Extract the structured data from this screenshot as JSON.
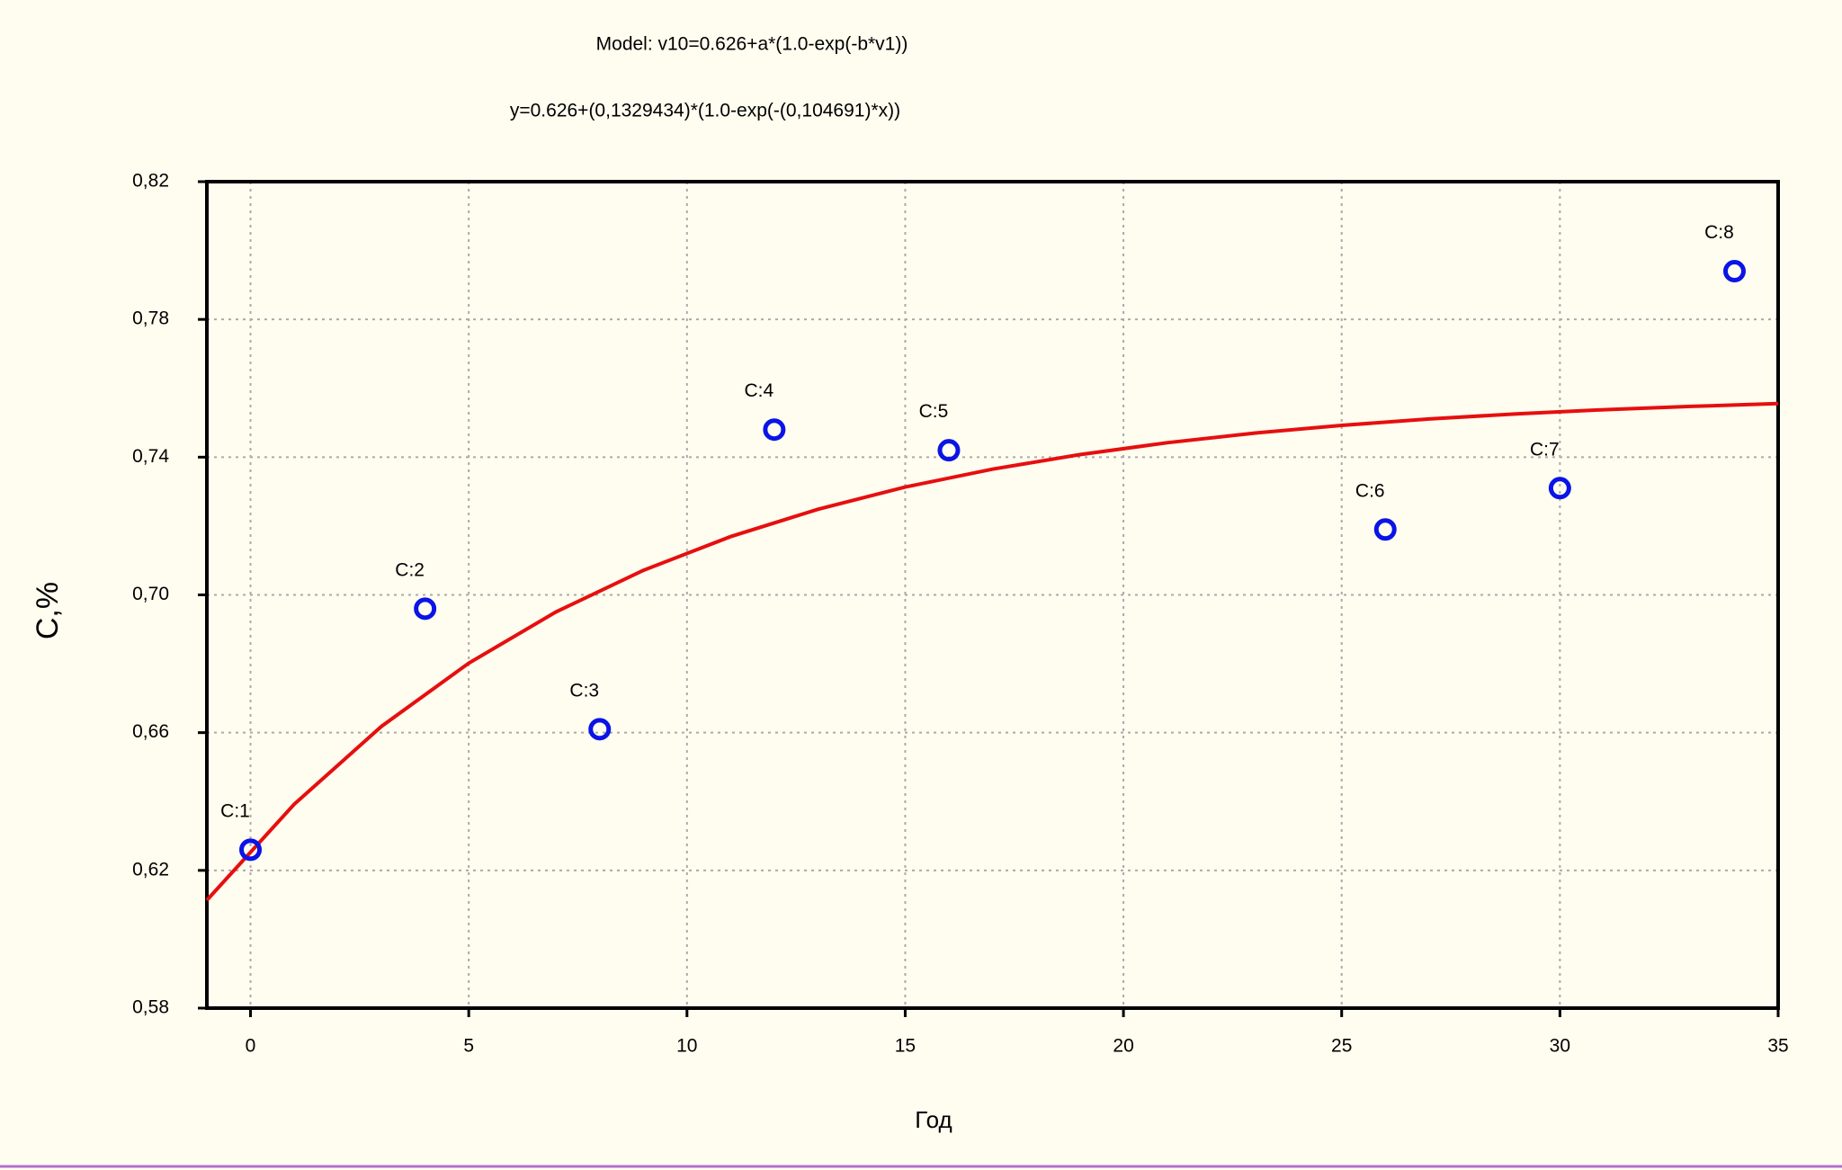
{
  "chart_data": {
    "type": "scatter",
    "title": "Model: v10=0.626+a*(1.0-exp(-b*v1))",
    "subtitle": "y=0.626+(0,1329434)*(1.0-exp(-(0,104691)*x))",
    "x_label": "Год",
    "y_label": "C,%",
    "x": [
      0,
      4,
      8,
      12,
      16,
      26,
      30,
      34
    ],
    "values": [
      0.626,
      0.696,
      0.661,
      0.748,
      0.742,
      0.719,
      0.731,
      0.794
    ],
    "point_labels": [
      "C:1",
      "C:2",
      "C:3",
      "C:4",
      "C:5",
      "C:6",
      "C:7",
      "C:8"
    ],
    "color": "#0a14e6",
    "fit_curve": {
      "color": "#e60f0f",
      "x": [
        -1,
        1,
        3,
        5,
        7,
        9,
        11,
        13,
        15,
        17,
        19,
        21,
        23,
        25,
        27,
        29,
        31,
        33,
        35
      ],
      "values": [
        0.61133,
        0.63921,
        0.66183,
        0.68018,
        0.69506,
        0.70713,
        0.71692,
        0.72486,
        0.7313,
        0.73652,
        0.74075,
        0.74419,
        0.74698,
        0.74924,
        0.75107,
        0.75256,
        0.75377,
        0.75474,
        0.75554
      ]
    },
    "xlim": [
      -1,
      35
    ],
    "xticks": [
      0,
      5,
      10,
      15,
      20,
      25,
      30,
      35
    ],
    "ylim": [
      0.58,
      0.82
    ],
    "yticks": [
      {
        "value": 0.58,
        "label": "0,58"
      },
      {
        "value": 0.62,
        "label": "0,62"
      },
      {
        "value": 0.66,
        "label": "0,66"
      },
      {
        "value": 0.7,
        "label": "0,70"
      },
      {
        "value": 0.74,
        "label": "0,74"
      },
      {
        "value": 0.78,
        "label": "0,78"
      },
      {
        "value": 0.82,
        "label": "0,82"
      }
    ],
    "grid": true
  }
}
